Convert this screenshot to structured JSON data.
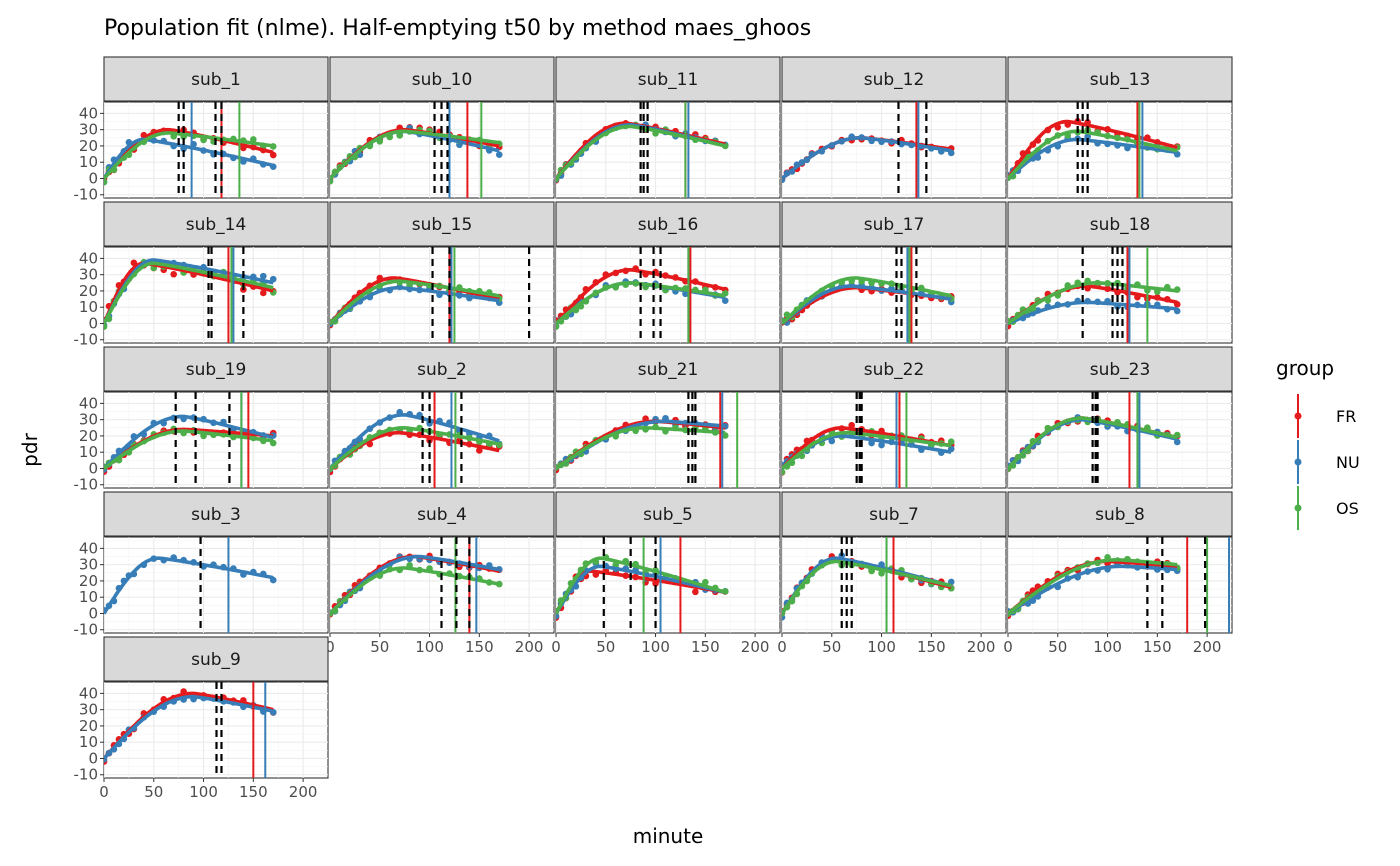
{
  "title": "Population fit (nlme). Half-emptying t50 by method maes_ghoos",
  "chart_data": {
    "type": "line",
    "title": "Population fit (nlme). Half-emptying t50 by method maes_ghoos",
    "xlabel": "minute",
    "ylabel": "pdr",
    "xlim": [
      0,
      225
    ],
    "ylim": [
      -12,
      47
    ],
    "x_ticks": [
      0,
      50,
      100,
      150,
      200
    ],
    "y_ticks": [
      -10,
      0,
      10,
      20,
      30,
      40
    ],
    "grid": true,
    "legend": {
      "title": "group",
      "placement": "right",
      "entries": [
        {
          "name": "FR",
          "color": "#E41A1C"
        },
        {
          "name": "NU",
          "color": "#377EB8"
        },
        {
          "name": "OS",
          "color": "#4DAF4A"
        }
      ]
    },
    "panels": [
      {
        "label": "sub_1",
        "series": [
          {
            "name": "FR",
            "peak": 30,
            "tpeak": 65,
            "end": 16,
            "t50": 118,
            "noise": 2.5
          },
          {
            "name": "NU",
            "peak": 24,
            "tpeak": 40,
            "end": 8,
            "t50": 88,
            "noise": 2.5
          },
          {
            "name": "OS",
            "peak": 28,
            "tpeak": 65,
            "end": 20,
            "t50": 136,
            "noise": 2.5
          }
        ],
        "ci_lines": [
          75,
          80,
          112,
          118
        ]
      },
      {
        "label": "sub_10",
        "series": [
          {
            "name": "FR",
            "peak": 30,
            "tpeak": 75,
            "end": 20,
            "t50": 138,
            "noise": 2.5
          },
          {
            "name": "NU",
            "peak": 29,
            "tpeak": 75,
            "end": 17,
            "t50": 120,
            "noise": 2.5
          },
          {
            "name": "OS",
            "peak": 29,
            "tpeak": 75,
            "end": 22,
            "t50": 152,
            "noise": 2.5
          }
        ],
        "ci_lines": [
          105,
          112,
          118
        ]
      },
      {
        "label": "sub_11",
        "series": [
          {
            "name": "FR",
            "peak": 34,
            "tpeak": 70,
            "end": 21,
            "t50": 130,
            "noise": 2
          },
          {
            "name": "NU",
            "peak": 33,
            "tpeak": 75,
            "end": 20,
            "t50": 133,
            "noise": 2
          },
          {
            "name": "OS",
            "peak": 32,
            "tpeak": 75,
            "end": 20,
            "t50": 130,
            "noise": 2
          }
        ],
        "ci_lines": [
          85,
          88,
          92
        ]
      },
      {
        "label": "sub_12",
        "series": [
          {
            "name": "FR",
            "peak": 25,
            "tpeak": 80,
            "end": 18,
            "t50": 135,
            "noise": 1.5
          },
          {
            "name": "NU",
            "peak": 25,
            "tpeak": 80,
            "end": 17,
            "t50": 137,
            "noise": 1.5
          }
        ],
        "ci_lines": [
          117,
          145
        ]
      },
      {
        "label": "sub_13",
        "series": [
          {
            "name": "FR",
            "peak": 35,
            "tpeak": 60,
            "end": 19,
            "t50": 130,
            "noise": 2.5
          },
          {
            "name": "NU",
            "peak": 24,
            "tpeak": 70,
            "end": 16,
            "t50": 135,
            "noise": 2.5
          },
          {
            "name": "OS",
            "peak": 29,
            "tpeak": 70,
            "end": 17,
            "t50": 132,
            "noise": 2.5
          }
        ],
        "ci_lines": [
          70,
          75,
          80
        ]
      },
      {
        "label": "sub_14",
        "series": [
          {
            "name": "FR",
            "peak": 37,
            "tpeak": 40,
            "end": 20,
            "t50": 125,
            "noise": 4
          },
          {
            "name": "NU",
            "peak": 39,
            "tpeak": 50,
            "end": 25,
            "t50": 130,
            "noise": 3
          },
          {
            "name": "OS",
            "peak": 37,
            "tpeak": 50,
            "end": 22,
            "t50": 128,
            "noise": 3
          }
        ],
        "ci_lines": [
          105,
          108,
          140
        ]
      },
      {
        "label": "sub_15",
        "series": [
          {
            "name": "FR",
            "peak": 28,
            "tpeak": 65,
            "end": 15,
            "t50": 120,
            "noise": 2
          },
          {
            "name": "NU",
            "peak": 22,
            "tpeak": 70,
            "end": 14,
            "t50": 122,
            "noise": 2
          },
          {
            "name": "OS",
            "peak": 26,
            "tpeak": 70,
            "end": 17,
            "t50": 125,
            "noise": 2
          }
        ],
        "ci_lines": [
          103,
          120,
          200
        ]
      },
      {
        "label": "sub_16",
        "series": [
          {
            "name": "FR",
            "peak": 33,
            "tpeak": 75,
            "end": 21,
            "t50": 135,
            "noise": 2
          },
          {
            "name": "NU",
            "peak": 25,
            "tpeak": 75,
            "end": 16,
            "t50": 133,
            "noise": 2
          },
          {
            "name": "OS",
            "peak": 25,
            "tpeak": 75,
            "end": 17,
            "t50": 133,
            "noise": 2
          }
        ],
        "ci_lines": [
          85,
          98,
          105
        ]
      },
      {
        "label": "sub_17",
        "series": [
          {
            "name": "FR",
            "peak": 22,
            "tpeak": 75,
            "end": 15,
            "t50": 130,
            "noise": 2
          },
          {
            "name": "NU",
            "peak": 23,
            "tpeak": 70,
            "end": 15,
            "t50": 126,
            "noise": 2
          },
          {
            "name": "OS",
            "peak": 28,
            "tpeak": 75,
            "end": 17,
            "t50": 128,
            "noise": 2.5
          }
        ],
        "ci_lines": [
          115,
          120,
          135
        ]
      },
      {
        "label": "sub_18",
        "series": [
          {
            "name": "FR",
            "peak": 23,
            "tpeak": 80,
            "end": 13,
            "t50": 120,
            "noise": 2
          },
          {
            "name": "NU",
            "peak": 13,
            "tpeak": 80,
            "end": 9,
            "t50": 122,
            "noise": 1.5
          },
          {
            "name": "OS",
            "peak": 25,
            "tpeak": 90,
            "end": 20,
            "t50": 140,
            "noise": 2.5
          }
        ],
        "ci_lines": [
          75,
          105,
          110,
          115
        ]
      },
      {
        "label": "sub_19",
        "series": [
          {
            "name": "FR",
            "peak": 24,
            "tpeak": 80,
            "end": 20,
            "t50": 145,
            "noise": 2
          },
          {
            "name": "NU",
            "peak": 32,
            "tpeak": 80,
            "end": 19,
            "t50": 138,
            "noise": 2
          },
          {
            "name": "OS",
            "peak": 23,
            "tpeak": 80,
            "end": 17,
            "t50": 138,
            "noise": 2
          }
        ],
        "ci_lines": [
          72,
          92,
          126
        ]
      },
      {
        "label": "sub_2",
        "series": [
          {
            "name": "FR",
            "peak": 22,
            "tpeak": 70,
            "end": 11,
            "t50": 105,
            "noise": 3
          },
          {
            "name": "NU",
            "peak": 33,
            "tpeak": 75,
            "end": 17,
            "t50": 122,
            "noise": 2
          },
          {
            "name": "OS",
            "peak": 25,
            "tpeak": 75,
            "end": 15,
            "t50": 126,
            "noise": 2
          }
        ],
        "ci_lines": [
          93,
          100,
          132
        ]
      },
      {
        "label": "sub_21",
        "series": [
          {
            "name": "FR",
            "peak": 29,
            "tpeak": 100,
            "end": 25,
            "t50": 165,
            "noise": 2
          },
          {
            "name": "NU",
            "peak": 29,
            "tpeak": 110,
            "end": 26,
            "t50": 167,
            "noise": 2
          },
          {
            "name": "OS",
            "peak": 25,
            "tpeak": 90,
            "end": 22,
            "t50": 182,
            "noise": 2
          }
        ],
        "ci_lines": [
          133,
          137,
          140
        ]
      },
      {
        "label": "sub_22",
        "series": [
          {
            "name": "FR",
            "peak": 25,
            "tpeak": 60,
            "end": 14,
            "t50": 118,
            "noise": 3
          },
          {
            "name": "NU",
            "peak": 20,
            "tpeak": 60,
            "end": 10,
            "t50": 115,
            "noise": 2.5
          },
          {
            "name": "OS",
            "peak": 22,
            "tpeak": 65,
            "end": 14,
            "t50": 125,
            "noise": 2.5
          }
        ],
        "ci_lines": [
          75,
          78,
          80
        ]
      },
      {
        "label": "sub_23",
        "series": [
          {
            "name": "FR",
            "peak": 31,
            "tpeak": 75,
            "end": 19,
            "t50": 122,
            "noise": 2
          },
          {
            "name": "NU",
            "peak": 30,
            "tpeak": 75,
            "end": 18,
            "t50": 132,
            "noise": 2
          },
          {
            "name": "OS",
            "peak": 31,
            "tpeak": 75,
            "end": 19,
            "t50": 130,
            "noise": 2
          }
        ],
        "ci_lines": [
          85,
          88,
          90
        ]
      },
      {
        "label": "sub_3",
        "series": [
          {
            "name": "NU",
            "peak": 34,
            "tpeak": 55,
            "end": 22,
            "t50": 125,
            "noise": 2
          }
        ],
        "ci_lines": [
          97
        ]
      },
      {
        "label": "sub_4",
        "series": [
          {
            "name": "FR",
            "peak": 35,
            "tpeak": 85,
            "end": 26,
            "t50": 140,
            "noise": 2
          },
          {
            "name": "NU",
            "peak": 35,
            "tpeak": 90,
            "end": 27,
            "t50": 147,
            "noise": 2
          },
          {
            "name": "OS",
            "peak": 28,
            "tpeak": 75,
            "end": 18,
            "t50": 126,
            "noise": 2
          }
        ],
        "ci_lines": [
          112,
          127,
          140
        ]
      },
      {
        "label": "sub_5",
        "series": [
          {
            "name": "FR",
            "peak": 26,
            "tpeak": 35,
            "end": 13,
            "t50": 125,
            "noise": 3
          },
          {
            "name": "NU",
            "peak": 29,
            "tpeak": 45,
            "end": 13,
            "t50": 105,
            "noise": 2.5
          },
          {
            "name": "OS",
            "peak": 34,
            "tpeak": 45,
            "end": 13,
            "t50": 88,
            "noise": 2.5
          }
        ],
        "ci_lines": [
          48,
          75,
          100
        ]
      },
      {
        "label": "sub_7",
        "series": [
          {
            "name": "FR",
            "peak": 33,
            "tpeak": 55,
            "end": 16,
            "t50": 112,
            "noise": 2.5
          },
          {
            "name": "NU",
            "peak": 34,
            "tpeak": 55,
            "end": 17,
            "t50": 105,
            "noise": 2.5
          },
          {
            "name": "OS",
            "peak": 32,
            "tpeak": 55,
            "end": 17,
            "t50": 105,
            "noise": 2.5
          }
        ],
        "ci_lines": [
          60,
          65,
          70
        ]
      },
      {
        "label": "sub_8",
        "series": [
          {
            "name": "FR",
            "peak": 32,
            "tpeak": 100,
            "end": 29,
            "t50": 180,
            "noise": 2
          },
          {
            "name": "NU",
            "peak": 29,
            "tpeak": 115,
            "end": 27,
            "t50": 222,
            "noise": 2
          },
          {
            "name": "OS",
            "peak": 33,
            "tpeak": 110,
            "end": 30,
            "t50": 200,
            "noise": 2
          }
        ],
        "ci_lines": [
          140,
          155,
          198
        ]
      },
      {
        "label": "sub_9",
        "series": [
          {
            "name": "FR",
            "peak": 40,
            "tpeak": 90,
            "end": 30,
            "t50": 150,
            "noise": 2
          },
          {
            "name": "NU",
            "peak": 38,
            "tpeak": 90,
            "end": 29,
            "t50": 162,
            "noise": 2
          }
        ],
        "ci_lines": [
          113,
          118
        ]
      }
    ]
  }
}
